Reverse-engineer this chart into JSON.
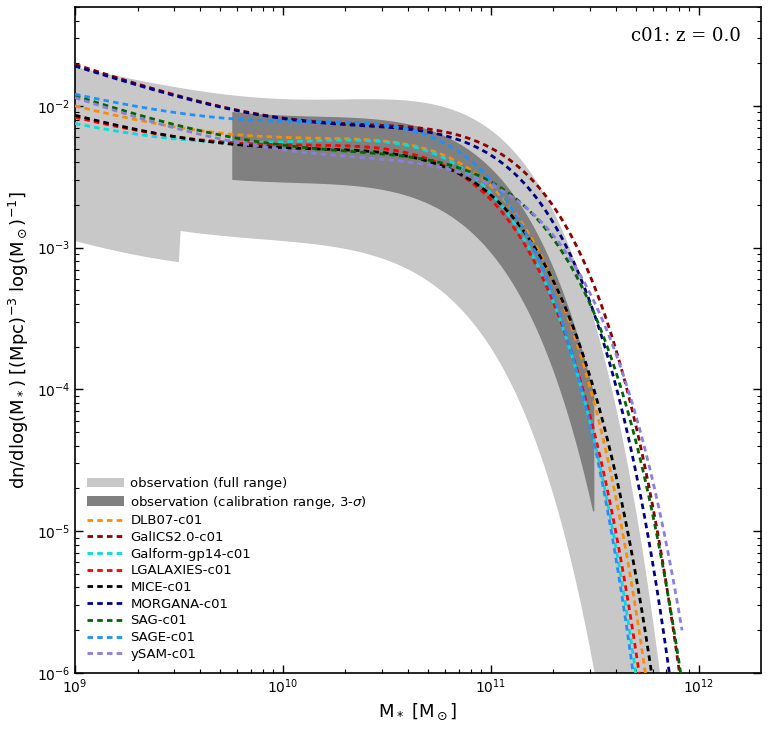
{
  "title": "c01: z = 0.0",
  "xlabel": "M$_*$ [M$_{\\odot}$]",
  "ylabel": "dn/dlog(M$_*$) [(Mpc)$^{-3}$ log(M$_{\\odot}$)$^{-1}$]",
  "xlim_log": [
    9.0,
    12.3
  ],
  "ylim": [
    1e-06,
    0.05
  ],
  "models": {
    "DLB07-c01": {
      "color": "#FF8C00"
    },
    "GalICS2.0-c01": {
      "color": "#8B0000"
    },
    "Galform-gp14-c01": {
      "color": "#00DDDD"
    },
    "LGALAXIES-c01": {
      "color": "#FF0000"
    },
    "MICE-c01": {
      "color": "#000000"
    },
    "MORGANA-c01": {
      "color": "#000080"
    },
    "SAG-c01": {
      "color": "#006400"
    },
    "SAGE-c01": {
      "color": "#1E90FF"
    },
    "ySAM-c01": {
      "color": "#8B7FDC"
    }
  },
  "obs_full_color": "#C8C8C8",
  "obs_calib_color": "#808080",
  "background_color": "#FFFFFF",
  "fontsize": 13,
  "legend_fontsize": 9.5
}
